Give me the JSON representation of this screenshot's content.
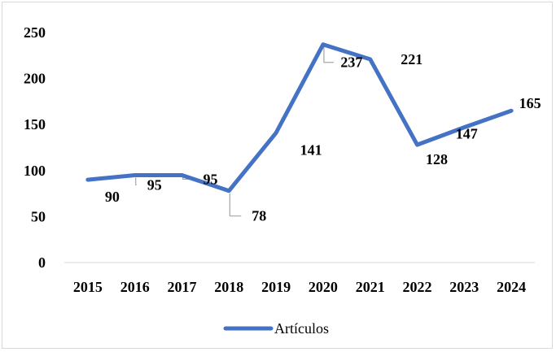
{
  "chart_data": {
    "type": "line",
    "categories": [
      "2015",
      "2016",
      "2017",
      "2018",
      "2019",
      "2020",
      "2021",
      "2022",
      "2023",
      "2024"
    ],
    "series": [
      {
        "name": "Artículos",
        "values": [
          90,
          95,
          95,
          78,
          141,
          237,
          221,
          128,
          147,
          165
        ]
      }
    ],
    "data_labels": [
      "90",
      "95",
      "95",
      "78",
      "141",
      "237",
      "221",
      "128",
      "147",
      "165"
    ],
    "y_ticks": [
      "0",
      "50",
      "100",
      "150",
      "200",
      "250"
    ],
    "ylim": [
      0,
      250
    ],
    "grid": false,
    "legend_position": "bottom",
    "colors": {
      "series": "#4472c4",
      "axis": "#d9d9d9",
      "leader": "#a6a6a6"
    }
  }
}
